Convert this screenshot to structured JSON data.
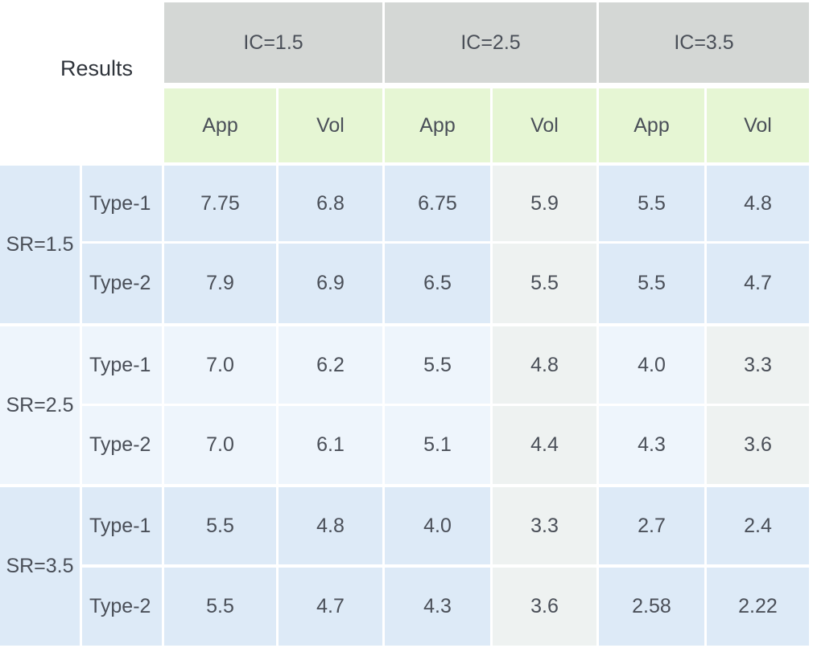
{
  "table": {
    "corner_label": "Results",
    "ic_groups": [
      "IC=1.5",
      "IC=2.5",
      "IC=3.5"
    ],
    "sub_headers": [
      "App",
      "Vol",
      "App",
      "Vol",
      "App",
      "Vol"
    ],
    "rows": [
      {
        "sr": "SR=1.5",
        "type": "Type-1",
        "values": [
          "7.75",
          "6.8",
          "6.75",
          "5.9",
          "5.5",
          "4.8"
        ]
      },
      {
        "sr": "SR=1.5",
        "type": "Type-2",
        "values": [
          "7.9",
          "6.9",
          "6.5",
          "5.5",
          "5.5",
          "4.7"
        ]
      },
      {
        "sr": "SR=2.5",
        "type": "Type-1",
        "values": [
          "7.0",
          "6.2",
          "5.5",
          "4.8",
          "4.0",
          "3.3"
        ]
      },
      {
        "sr": "SR=2.5",
        "type": "Type-2",
        "values": [
          "7.0",
          "6.1",
          "5.1",
          "4.4",
          "4.3",
          "3.6"
        ]
      },
      {
        "sr": "SR=3.5",
        "type": "Type-1",
        "values": [
          "5.5",
          "4.8",
          "4.0",
          "3.3",
          "2.7",
          "2.4"
        ]
      },
      {
        "sr": "SR=3.5",
        "type": "Type-2",
        "values": [
          "5.5",
          "4.7",
          "4.3",
          "3.6",
          "2.58",
          "2.22"
        ]
      }
    ],
    "sr_groups": [
      "SR=1.5",
      "SR=2.5",
      "SR=3.5"
    ]
  },
  "colors": {
    "header_gray": "#d4d7d5",
    "header_green": "#e6f6d4",
    "cell_blue": "#ddeaf7",
    "cell_gray": "#eef2f1",
    "cell_light": "#eef5fc"
  }
}
